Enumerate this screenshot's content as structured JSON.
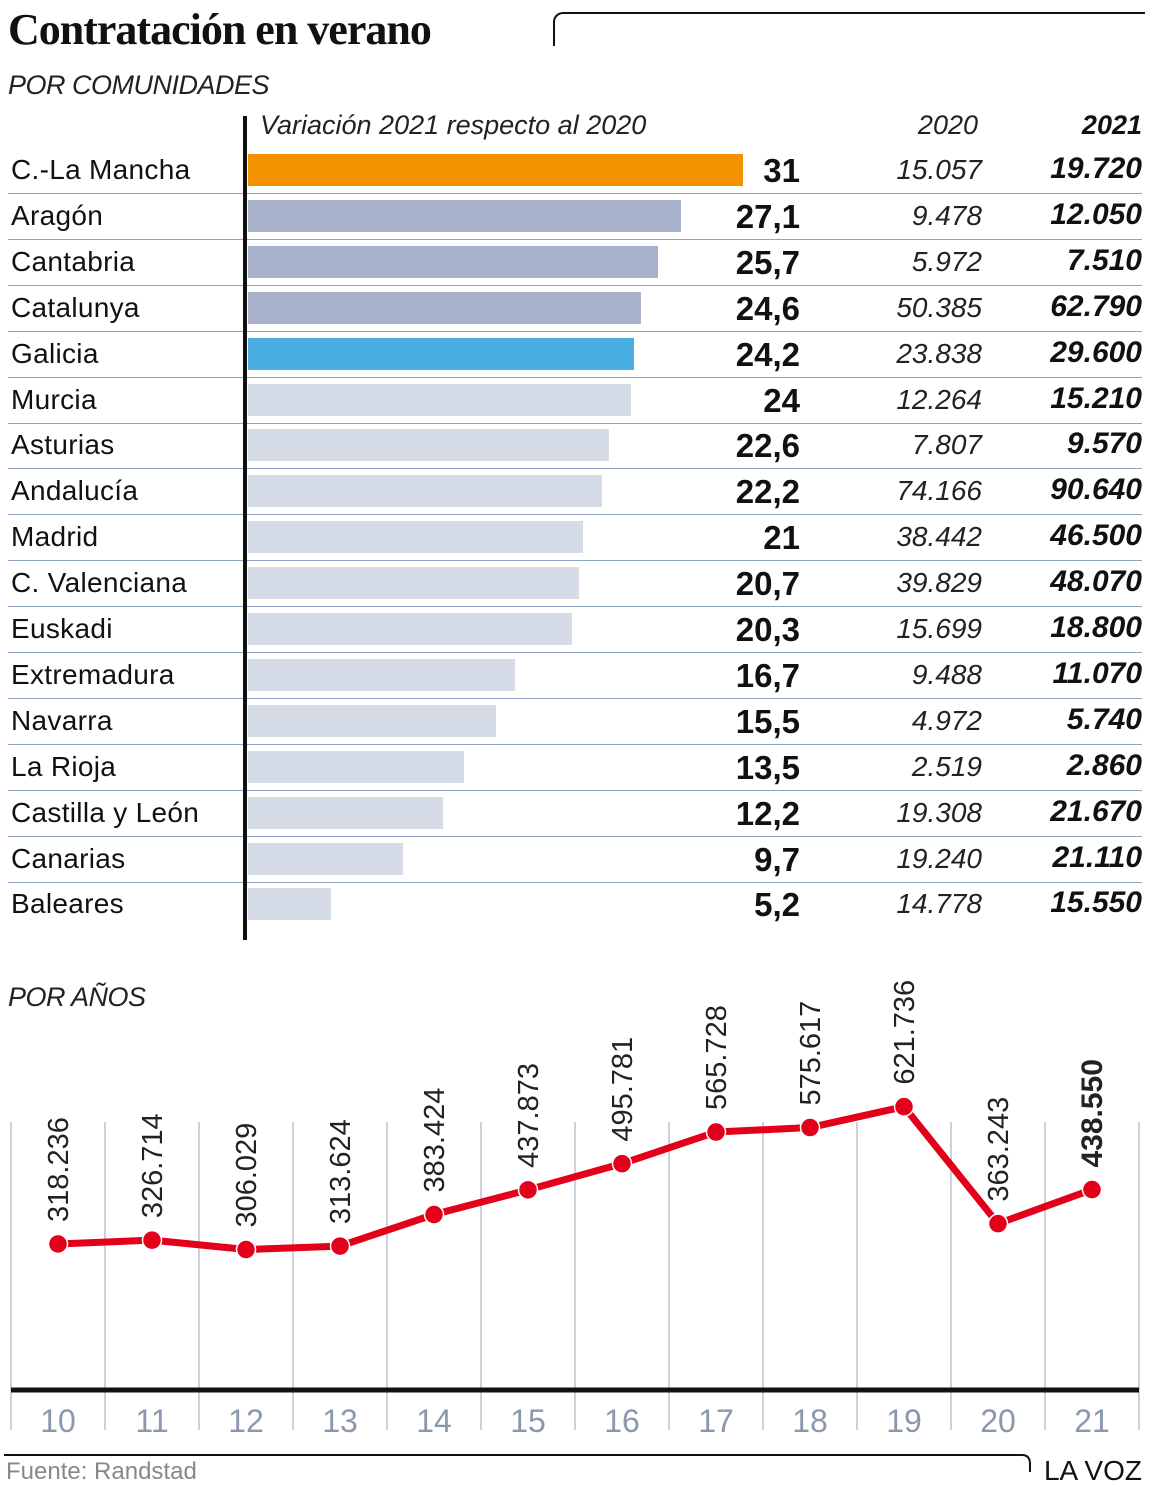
{
  "header": {
    "title": "Contratación en verano",
    "section1": "POR COMUNIDADES",
    "section2": "POR AÑOS"
  },
  "columns": {
    "variation": "Variación 2021 respecto al 2020",
    "y2020": "2020",
    "y2021": "2021"
  },
  "colors": {
    "highlight_top": "#f39200",
    "highlight_galicia": "#4aaee3",
    "top_group": "#a8b3cb",
    "rest": "#d6dce7",
    "line": "#e2001a",
    "grid": "#c9d2dc",
    "axis_labels": "#8a97ac"
  },
  "chart_data": [
    {
      "type": "bar",
      "orientation": "horizontal",
      "title": "POR COMUNIDADES",
      "xlabel": "Variación 2021 respecto al 2020",
      "xlim": [
        0,
        31
      ],
      "categories": [
        "C.-La Mancha",
        "Aragón",
        "Cantabria",
        "Catalunya",
        "Galicia",
        "Murcia",
        "Asturias",
        "Andalucía",
        "Madrid",
        "C. Valenciana",
        "Euskadi",
        "Extremadura",
        "Navarra",
        "La Rioja",
        "Castilla y León",
        "Canarias",
        "Baleares"
      ],
      "values": [
        31,
        27.1,
        25.7,
        24.6,
        24.2,
        24,
        22.6,
        22.2,
        21,
        20.7,
        20.3,
        16.7,
        15.5,
        13.5,
        12.2,
        9.7,
        5.2
      ],
      "labels": [
        "31",
        "27,1",
        "25,7",
        "24,6",
        "24,2",
        "24",
        "22,6",
        "22,2",
        "21",
        "20,7",
        "20,3",
        "16,7",
        "15,5",
        "13,5",
        "12,2",
        "9,7",
        "5,2"
      ],
      "color_groups": [
        "highlight_top",
        "top_group",
        "top_group",
        "top_group",
        "highlight_galicia",
        "rest",
        "rest",
        "rest",
        "rest",
        "rest",
        "rest",
        "rest",
        "rest",
        "rest",
        "rest",
        "rest",
        "rest"
      ],
      "table": {
        "y2020": [
          "15.057",
          "9.478",
          "5.972",
          "50.385",
          "23.838",
          "12.264",
          "7.807",
          "74.166",
          "38.442",
          "39.829",
          "15.699",
          "9.488",
          "4.972",
          "2.519",
          "19.308",
          "19.240",
          "14.778"
        ],
        "y2021": [
          "19.720",
          "12.050",
          "7.510",
          "62.790",
          "29.600",
          "15.210",
          "9.570",
          "90.640",
          "46.500",
          "48.070",
          "18.800",
          "11.070",
          "5.740",
          "2.860",
          "21.670",
          "21.110",
          "15.550"
        ]
      }
    },
    {
      "type": "line",
      "title": "POR AÑOS",
      "categories": [
        "10",
        "11",
        "12",
        "13",
        "14",
        "15",
        "16",
        "17",
        "18",
        "19",
        "20",
        "21"
      ],
      "values": [
        318236,
        326714,
        306029,
        313624,
        383424,
        437873,
        495781,
        565728,
        575617,
        621736,
        363243,
        438550
      ],
      "labels": [
        "318.236",
        "326.714",
        "306.029",
        "313.624",
        "383.424",
        "437.873",
        "495.781",
        "565.728",
        "575.617",
        "621.736",
        "363.243",
        "438.550"
      ],
      "highlight_last_label": true,
      "ylim": [
        0,
        650000
      ],
      "grid": "vertical"
    }
  ],
  "footer": {
    "source": "Fuente:  Randstad",
    "brand": "LA VOZ"
  }
}
